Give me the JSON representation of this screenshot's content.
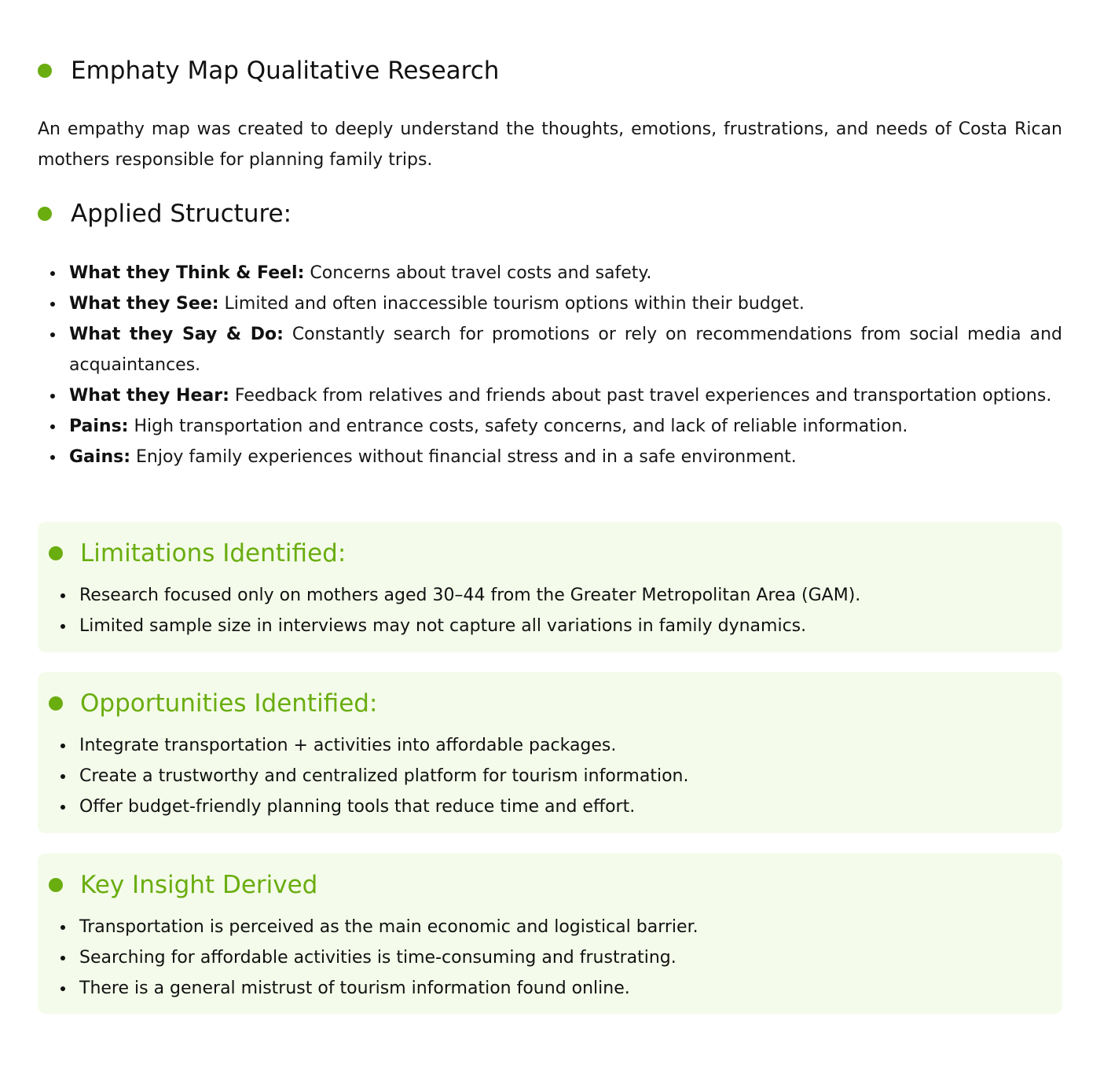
{
  "section1": {
    "title": "Emphaty Map Qualitative Research",
    "intro": "An empathy map was created to deeply understand the thoughts, emotions, frustrations, and needs of Costa Rican mothers responsible for planning family trips."
  },
  "section2": {
    "title": "Applied Structure:",
    "items": [
      {
        "label": "What they Think & Feel:",
        "text": " Concerns about travel costs and safety."
      },
      {
        "label": "What they See:",
        "text": " Limited and often inaccessible tourism options within their budget."
      },
      {
        "label": "What they Say & Do:",
        "text": " Constantly search for promotions or rely on recommendations from social media and acquaintances."
      },
      {
        "label": "What they Hear:",
        "text": " Feedback from relatives and friends about past travel experiences and transportation options."
      },
      {
        "label": "Pains:",
        "text": " High transportation and entrance costs, safety concerns, and lack of reliable information."
      },
      {
        "label": "Gains:",
        "text": " Enjoy family experiences without financial stress and in a safe environment."
      }
    ]
  },
  "limitations": {
    "title": "Limitations Identified:",
    "items": [
      "Research focused only on mothers aged 30–44 from the Greater Metropolitan Area (GAM).",
      "Limited sample size in interviews may not capture all variations in family dynamics."
    ]
  },
  "opportunities": {
    "title": "Opportunities Identified:",
    "items": [
      "Integrate transportation + activities into affordable packages.",
      "Create a trustworthy and centralized platform for tourism information.",
      "Offer budget-friendly planning tools that reduce time and effort."
    ]
  },
  "insight": {
    "title": "Key Insight Derived",
    "items": [
      "Transportation is perceived as the main economic and logistical barrier.",
      "Searching for affordable activities is time-consuming and frustrating.",
      "There is a general mistrust of tourism information found online."
    ]
  },
  "colors": {
    "accent": "#6aad0f",
    "card_background": "#f4fbea",
    "text": "#111111"
  }
}
